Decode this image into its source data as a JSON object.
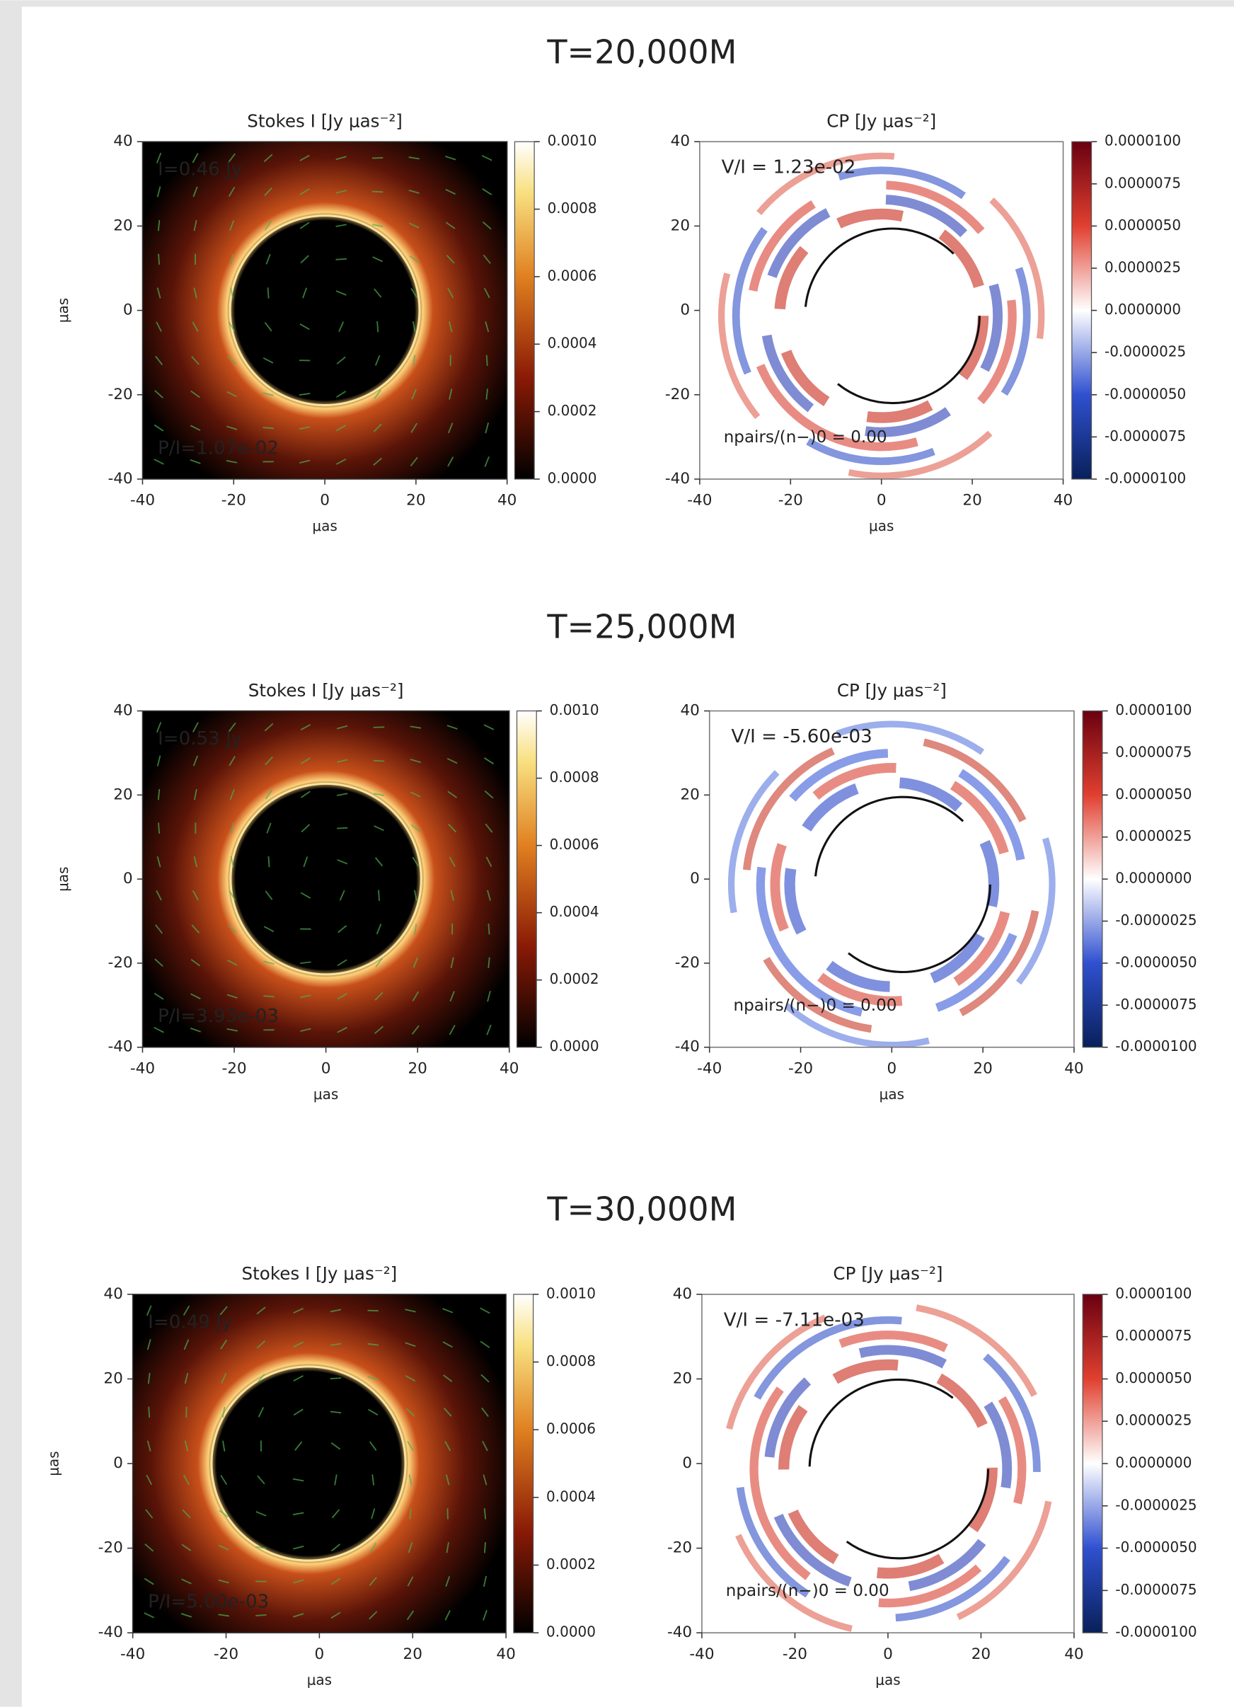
{
  "axes": {
    "xticks": [
      -40,
      -20,
      0,
      20,
      40
    ],
    "yticks": [
      40,
      20,
      0,
      -20,
      -40
    ],
    "xlabel": "μas",
    "ylabel": "μas"
  },
  "stokes_title": "Stokes I [Jy μas⁻²]",
  "cp_title": "CP [Jy μas⁻²]",
  "stokes_colorbar_ticks": [
    "0.0010",
    "0.0008",
    "0.0006",
    "0.0004",
    "0.0002",
    "0.0000"
  ],
  "cp_colorbar_ticks": [
    "0.0000100",
    "0.0000075",
    "0.0000050",
    "0.0000025",
    "0.0000000",
    "-0.0000025",
    "-0.0000050",
    "-0.0000075",
    "-0.0000100"
  ],
  "rows": [
    {
      "title": "T=20,000M",
      "stokes_top": "I=0.46 Jy",
      "stokes_bottom": "P/I=1.07e-02",
      "cp_top": "V/I = 1.23e-02",
      "cp_bottom": "npairs/(n−)0 = 0.00"
    },
    {
      "title": "T=25,000M",
      "stokes_top": "I=0.53 Jy",
      "stokes_bottom": "P/I=3.93e-03",
      "cp_top": "V/I = -5.60e-03",
      "cp_bottom": "npairs/(n−)0 = 0.00"
    },
    {
      "title": "T=30,000M",
      "stokes_top": "I=0.49 Jy",
      "stokes_bottom": "P/I=5.00e-03",
      "cp_top": "V/I = -7.11e-03",
      "cp_bottom": "npairs/(n−)0 = 0.00"
    }
  ]
}
